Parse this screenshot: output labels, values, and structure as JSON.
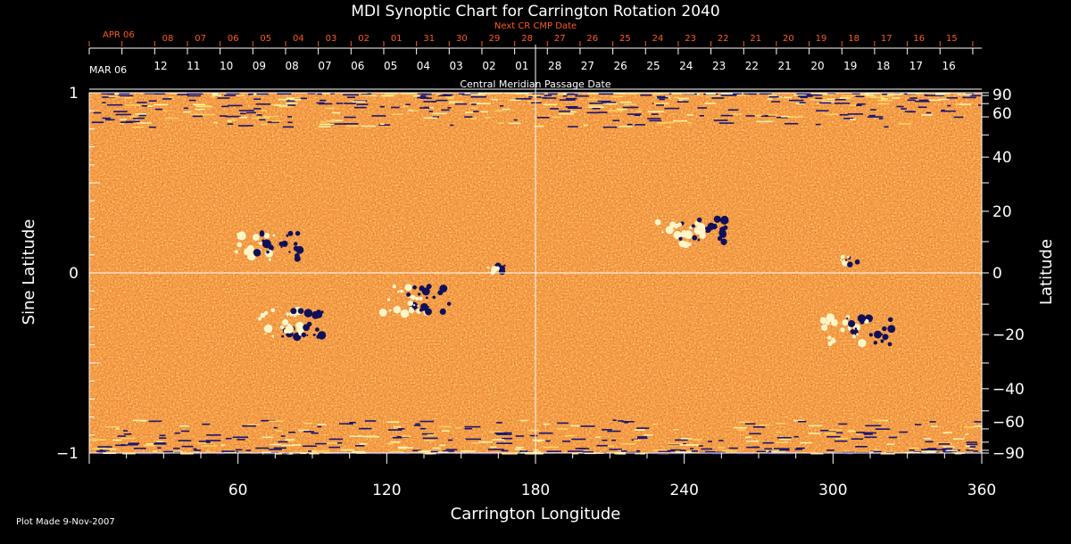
{
  "chart_data": {
    "type": "heatmap",
    "title": "MDI Synoptic Chart for Carrington Rotation 2040",
    "xlabel": "Carrington Longitude",
    "ylabel_left": "Sine Latitude",
    "ylabel_right": "Latitude",
    "xlim": [
      0,
      360
    ],
    "ylim": [
      -1,
      1
    ],
    "x_ticks": [
      60,
      120,
      180,
      240,
      300,
      360
    ],
    "y_ticks_left": [
      {
        "v": 1,
        "label": "1"
      },
      {
        "v": 0,
        "label": "0"
      },
      {
        "v": -1,
        "label": "−1"
      }
    ],
    "latitude_ticks": [
      90,
      60,
      40,
      20,
      0,
      -20,
      -40,
      -60,
      -90
    ],
    "grid": "lines at 0 sine latitude and 180 longitude",
    "top_axis_label": "Central Meridian Passage Date",
    "top_axis_dates": {
      "first_label": "MAR 06",
      "labels": [
        "12",
        "11",
        "10",
        "09",
        "08",
        "07",
        "06",
        "05",
        "04",
        "03",
        "02",
        "01",
        "28",
        "27",
        "26",
        "25",
        "24",
        "23",
        "22",
        "21",
        "20",
        "19",
        "18",
        "17",
        "16"
      ]
    },
    "next_cr_axis": {
      "label": "Next CR CMP Date",
      "first_label": "APR 06",
      "labels": [
        "08",
        "07",
        "06",
        "05",
        "04",
        "03",
        "02",
        "01",
        "31",
        "30",
        "29",
        "28",
        "27",
        "26",
        "25",
        "24",
        "23",
        "22",
        "21",
        "20",
        "19",
        "18",
        "17",
        "16",
        "15"
      ],
      "color": "#ff5a1e"
    },
    "colors": {
      "background_field": "#e34a10",
      "positive": "#fff2a0",
      "negative": "#1a1670",
      "axes": "#ffffff"
    },
    "active_regions": [
      {
        "lon": 132,
        "sinlat": -0.15,
        "type": "bipole"
      },
      {
        "lon": 72,
        "sinlat": 0.15,
        "type": "bipole"
      },
      {
        "lon": 82,
        "sinlat": -0.28,
        "type": "bipole"
      },
      {
        "lon": 243,
        "sinlat": 0.23,
        "type": "bipole"
      },
      {
        "lon": 310,
        "sinlat": -0.32,
        "type": "bipole"
      },
      {
        "lon": 306,
        "sinlat": 0.07,
        "type": "small"
      },
      {
        "lon": 164,
        "sinlat": 0.02,
        "type": "small"
      }
    ]
  },
  "footer": {
    "plot_made": "Plot Made  9-Nov-2007"
  }
}
